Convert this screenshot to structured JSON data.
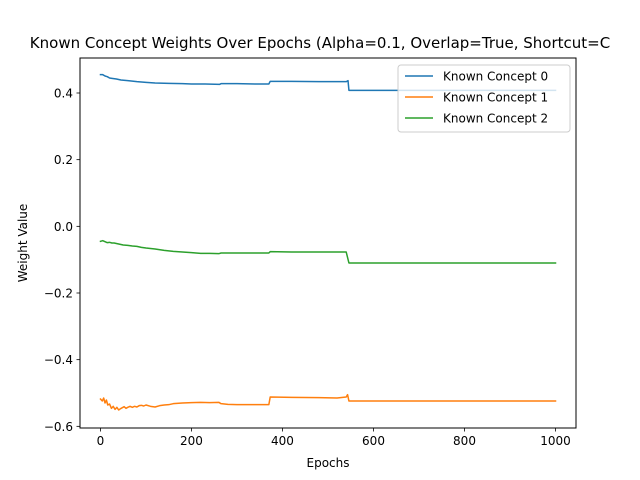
{
  "chart_data": {
    "type": "line",
    "title": "Known Concept Weights Over Epochs (Alpha=0.1, Overlap=True, Shortcut=C",
    "xlabel": "Epochs",
    "ylabel": "Weight Value",
    "xlim": [
      -45,
      1045
    ],
    "ylim": [
      -0.605,
      0.505
    ],
    "xticks": [
      0,
      200,
      400,
      600,
      800,
      1000
    ],
    "yticks": [
      -0.6,
      -0.4,
      -0.2,
      0.0,
      0.2,
      0.4
    ],
    "xtick_labels": [
      "0",
      "200",
      "400",
      "600",
      "800",
      "1000"
    ],
    "ytick_labels": [
      "−0.6",
      "−0.4",
      "−0.2",
      "0.0",
      "0.2",
      "0.4"
    ],
    "grid": false,
    "legend_position": "top-right",
    "series": [
      {
        "name": "Known Concept 0",
        "color": "#1f77b4",
        "points": [
          [
            0,
            0.455
          ],
          [
            5,
            0.455
          ],
          [
            10,
            0.451
          ],
          [
            15,
            0.449
          ],
          [
            20,
            0.445
          ],
          [
            25,
            0.444
          ],
          [
            35,
            0.442
          ],
          [
            45,
            0.439
          ],
          [
            60,
            0.437
          ],
          [
            80,
            0.434
          ],
          [
            100,
            0.432
          ],
          [
            120,
            0.43
          ],
          [
            150,
            0.429
          ],
          [
            180,
            0.428
          ],
          [
            200,
            0.427
          ],
          [
            230,
            0.427
          ],
          [
            262,
            0.426
          ],
          [
            265,
            0.428
          ],
          [
            300,
            0.428
          ],
          [
            340,
            0.427
          ],
          [
            370,
            0.427
          ],
          [
            373,
            0.435
          ],
          [
            420,
            0.435
          ],
          [
            480,
            0.434
          ],
          [
            540,
            0.434
          ],
          [
            544,
            0.437
          ],
          [
            546,
            0.408
          ],
          [
            600,
            0.408
          ],
          [
            700,
            0.408
          ],
          [
            800,
            0.408
          ],
          [
            900,
            0.408
          ],
          [
            1000,
            0.408
          ]
        ]
      },
      {
        "name": "Known Concept 1",
        "color": "#ff7f0e",
        "points": [
          [
            0,
            -0.518
          ],
          [
            4,
            -0.524
          ],
          [
            7,
            -0.515
          ],
          [
            10,
            -0.53
          ],
          [
            13,
            -0.521
          ],
          [
            16,
            -0.536
          ],
          [
            20,
            -0.533
          ],
          [
            24,
            -0.546
          ],
          [
            28,
            -0.54
          ],
          [
            32,
            -0.549
          ],
          [
            36,
            -0.543
          ],
          [
            40,
            -0.551
          ],
          [
            44,
            -0.547
          ],
          [
            48,
            -0.544
          ],
          [
            52,
            -0.541
          ],
          [
            56,
            -0.546
          ],
          [
            60,
            -0.543
          ],
          [
            65,
            -0.54
          ],
          [
            70,
            -0.543
          ],
          [
            75,
            -0.54
          ],
          [
            80,
            -0.542
          ],
          [
            85,
            -0.538
          ],
          [
            90,
            -0.537
          ],
          [
            95,
            -0.539
          ],
          [
            100,
            -0.536
          ],
          [
            110,
            -0.54
          ],
          [
            120,
            -0.542
          ],
          [
            130,
            -0.538
          ],
          [
            140,
            -0.536
          ],
          [
            150,
            -0.535
          ],
          [
            160,
            -0.532
          ],
          [
            180,
            -0.53
          ],
          [
            200,
            -0.529
          ],
          [
            220,
            -0.528
          ],
          [
            240,
            -0.529
          ],
          [
            260,
            -0.528
          ],
          [
            265,
            -0.532
          ],
          [
            280,
            -0.534
          ],
          [
            300,
            -0.535
          ],
          [
            340,
            -0.535
          ],
          [
            370,
            -0.535
          ],
          [
            373,
            -0.512
          ],
          [
            420,
            -0.513
          ],
          [
            480,
            -0.514
          ],
          [
            520,
            -0.515
          ],
          [
            540,
            -0.512
          ],
          [
            543,
            -0.505
          ],
          [
            546,
            -0.524
          ],
          [
            600,
            -0.524
          ],
          [
            700,
            -0.524
          ],
          [
            800,
            -0.524
          ],
          [
            900,
            -0.524
          ],
          [
            1000,
            -0.524
          ]
        ]
      },
      {
        "name": "Known Concept 2",
        "color": "#2ca02c",
        "points": [
          [
            0,
            -0.045
          ],
          [
            5,
            -0.043
          ],
          [
            10,
            -0.046
          ],
          [
            15,
            -0.049
          ],
          [
            20,
            -0.048
          ],
          [
            25,
            -0.05
          ],
          [
            30,
            -0.05
          ],
          [
            40,
            -0.053
          ],
          [
            50,
            -0.056
          ],
          [
            60,
            -0.057
          ],
          [
            70,
            -0.059
          ],
          [
            80,
            -0.06
          ],
          [
            90,
            -0.063
          ],
          [
            100,
            -0.065
          ],
          [
            120,
            -0.068
          ],
          [
            140,
            -0.072
          ],
          [
            160,
            -0.075
          ],
          [
            180,
            -0.077
          ],
          [
            200,
            -0.079
          ],
          [
            220,
            -0.081
          ],
          [
            240,
            -0.081
          ],
          [
            260,
            -0.082
          ],
          [
            265,
            -0.08
          ],
          [
            300,
            -0.08
          ],
          [
            340,
            -0.08
          ],
          [
            370,
            -0.08
          ],
          [
            373,
            -0.076
          ],
          [
            420,
            -0.077
          ],
          [
            480,
            -0.077
          ],
          [
            540,
            -0.077
          ],
          [
            546,
            -0.11
          ],
          [
            600,
            -0.11
          ],
          [
            700,
            -0.11
          ],
          [
            800,
            -0.11
          ],
          [
            900,
            -0.11
          ],
          [
            1000,
            -0.11
          ]
        ]
      }
    ]
  }
}
